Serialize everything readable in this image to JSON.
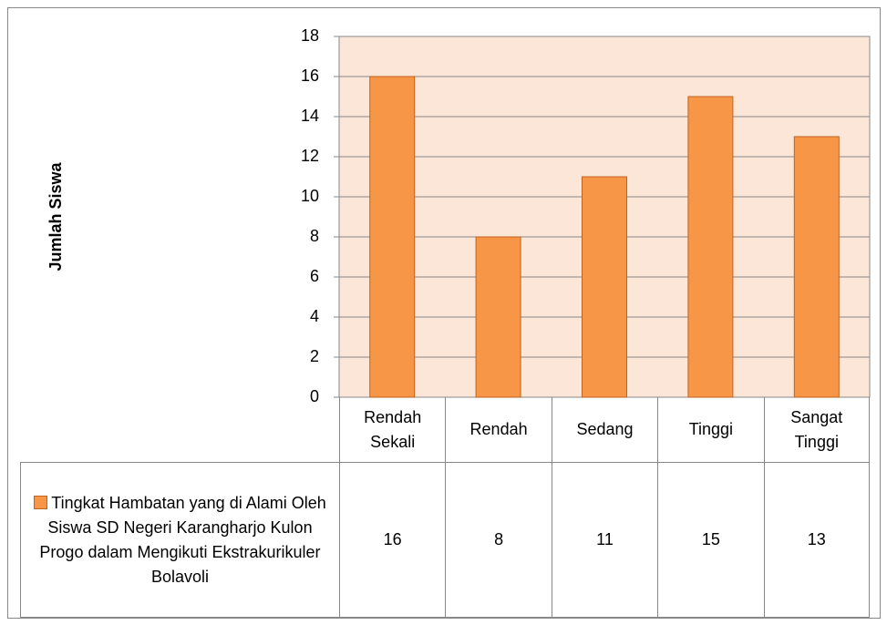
{
  "chart_data": {
    "type": "bar",
    "y_label": "Jumlah Siswa",
    "categories": [
      "Rendah Sekali",
      "Rendah",
      "Sedang",
      "Tinggi",
      "Sangat Tinggi"
    ],
    "series": [
      {
        "name": "Tingkat Hambatan yang di Alami Oleh Siswa SD Negeri Karangharjo Kulon Progo dalam Mengikuti Ekstrakurikuler Bolavoli",
        "color": "#f79646",
        "values": [
          16,
          8,
          11,
          15,
          13
        ]
      }
    ],
    "ylim": [
      0,
      18
    ],
    "yticks": [
      0,
      2,
      4,
      6,
      8,
      10,
      12,
      14,
      16,
      18
    ],
    "grid": true,
    "data_table": true
  }
}
